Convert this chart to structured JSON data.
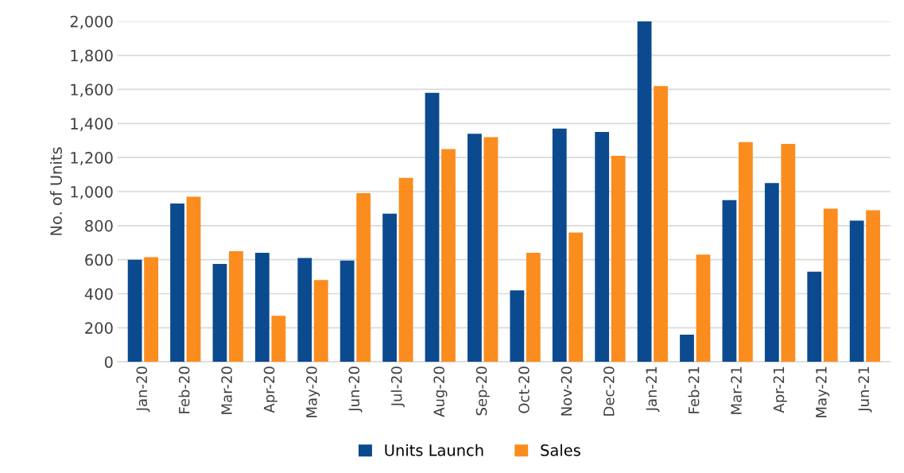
{
  "chart_data": {
    "type": "bar",
    "ylabel": "No. of Units",
    "categories": [
      "Jan-20",
      "Feb-20",
      "Mar-20",
      "Apr-20",
      "May-20",
      "Jun-20",
      "Jul-20",
      "Aug-20",
      "Sep-20",
      "Oct-20",
      "Nov-20",
      "Dec-20",
      "Jan-21",
      "Feb-21",
      "Mar-21",
      "Apr-21",
      "May-21",
      "Jun-21"
    ],
    "series": [
      {
        "name": "Units Launch",
        "color": "#0b4a8f",
        "values": [
          600,
          930,
          575,
          640,
          610,
          595,
          870,
          1580,
          1340,
          420,
          1370,
          1350,
          2000,
          160,
          950,
          1050,
          530,
          830
        ]
      },
      {
        "name": "Sales",
        "color": "#fb8c1e",
        "values": [
          615,
          970,
          650,
          270,
          480,
          990,
          1080,
          1250,
          1320,
          640,
          760,
          1210,
          1620,
          630,
          1290,
          1280,
          900,
          890
        ]
      }
    ],
    "ylim": [
      0,
      2000
    ],
    "yticks": [
      {
        "value": 0,
        "label": "0"
      },
      {
        "value": 200,
        "label": "200"
      },
      {
        "value": 400,
        "label": "400"
      },
      {
        "value": 600,
        "label": "600"
      },
      {
        "value": 800,
        "label": "800"
      },
      {
        "value": 1000,
        "label": "1,000"
      },
      {
        "value": 1200,
        "label": "1,200"
      },
      {
        "value": 1400,
        "label": "1,400"
      },
      {
        "value": 1600,
        "label": "1,600"
      },
      {
        "value": 1800,
        "label": "1,800"
      },
      {
        "value": 2000,
        "label": "2,000"
      }
    ],
    "grid": "y",
    "legend": "bottom"
  }
}
